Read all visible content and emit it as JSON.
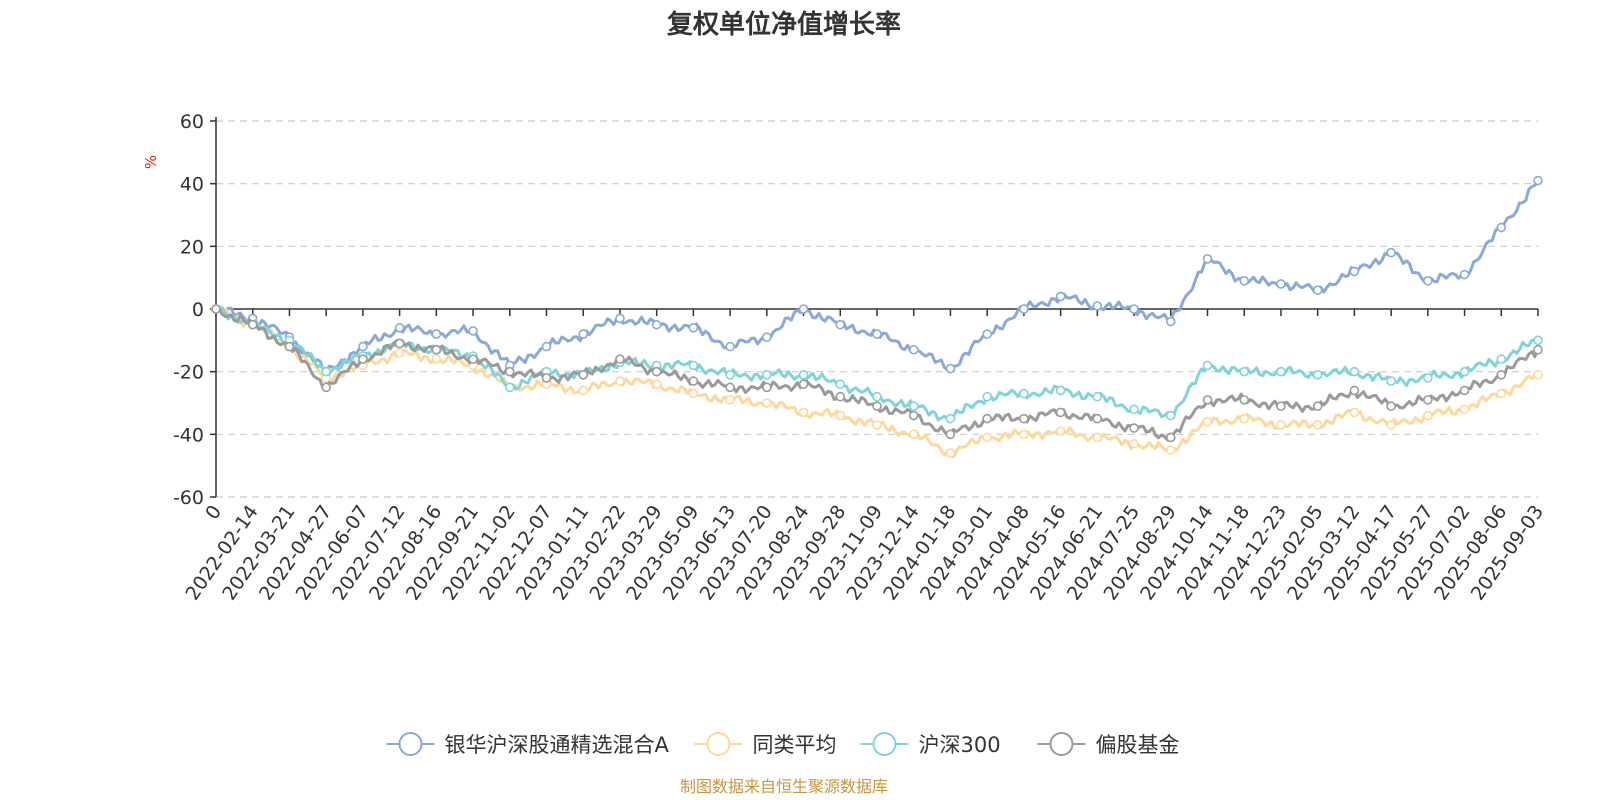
{
  "title": "复权单位净值增长率",
  "source_note": "制图数据来自恒生聚源数据库",
  "chart_data": {
    "type": "line",
    "title": "复权单位净值增长率",
    "xlabel": "",
    "ylabel": "%",
    "ylim": [
      -60,
      60
    ],
    "yticks": [
      60,
      40,
      20,
      0,
      -20,
      -40,
      -60
    ],
    "grid": true,
    "legend_position": "bottom",
    "categories": [
      "0",
      "2022-02-14",
      "2022-03-21",
      "2022-04-27",
      "2022-06-07",
      "2022-07-12",
      "2022-08-16",
      "2022-09-21",
      "2022-11-02",
      "2022-12-07",
      "2023-01-11",
      "2023-02-22",
      "2023-03-29",
      "2023-05-09",
      "2023-06-13",
      "2023-07-20",
      "2023-08-24",
      "2023-09-28",
      "2023-11-09",
      "2023-12-14",
      "2024-01-18",
      "2024-03-01",
      "2024-04-08",
      "2024-05-16",
      "2024-06-21",
      "2024-07-25",
      "2024-08-29",
      "2024-10-14",
      "2024-11-18",
      "2024-12-23",
      "2025-02-05",
      "2025-03-12",
      "2025-04-17",
      "2025-05-27",
      "2025-07-02",
      "2025-08-06",
      "2025-09-03"
    ],
    "series": [
      {
        "name": "银华沪深股通精选混合A",
        "color": "#8aa8d8",
        "values": [
          0,
          -3,
          -9,
          -20,
          -12,
          -6,
          -8,
          -7,
          -18,
          -12,
          -8,
          -3,
          -5,
          -6,
          -12,
          -9,
          0,
          -5,
          -8,
          -13,
          -19,
          -8,
          0,
          4,
          1,
          0,
          -4,
          16,
          9,
          8,
          6,
          12,
          18,
          9,
          11,
          26,
          41
        ]
      },
      {
        "name": "同类平均",
        "color": "#fcd89a",
        "values": [
          0,
          -5,
          -12,
          -22,
          -18,
          -14,
          -16,
          -18,
          -25,
          -24,
          -26,
          -23,
          -24,
          -27,
          -29,
          -30,
          -33,
          -34,
          -37,
          -40,
          -46,
          -41,
          -40,
          -39,
          -41,
          -43,
          -45,
          -36,
          -35,
          -37,
          -37,
          -33,
          -37,
          -34,
          -32,
          -27,
          -21
        ]
      },
      {
        "name": "沪深300",
        "color": "#7fd4d8",
        "values": [
          0,
          -5,
          -10,
          -20,
          -15,
          -11,
          -13,
          -15,
          -25,
          -20,
          -21,
          -17,
          -18,
          -18,
          -21,
          -21,
          -21,
          -24,
          -28,
          -31,
          -35,
          -28,
          -27,
          -26,
          -28,
          -32,
          -34,
          -18,
          -20,
          -20,
          -21,
          -20,
          -23,
          -22,
          -20,
          -16,
          -10
        ]
      },
      {
        "name": "偏股基金",
        "color": "#9a9a9a",
        "values": [
          0,
          -5,
          -12,
          -25,
          -16,
          -11,
          -13,
          -16,
          -20,
          -22,
          -21,
          -16,
          -20,
          -23,
          -25,
          -25,
          -24,
          -28,
          -31,
          -34,
          -40,
          -35,
          -35,
          -33,
          -35,
          -38,
          -41,
          -29,
          -29,
          -31,
          -31,
          -26,
          -31,
          -29,
          -26,
          -21,
          -13
        ]
      }
    ]
  }
}
